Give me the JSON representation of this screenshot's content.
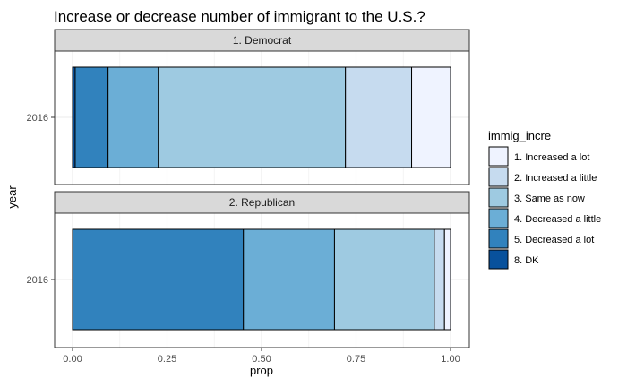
{
  "chart_data": {
    "type": "bar",
    "orientation": "horizontal",
    "stacked": true,
    "title": "Increase or decrease number of immigrant to the U.S.?",
    "xlabel": "prop",
    "ylabel": "year",
    "xlim": [
      0,
      1
    ],
    "x_ticks": [
      "0.00",
      "0.25",
      "0.50",
      "0.75",
      "1.00"
    ],
    "grid": true,
    "legend": {
      "title": "immig_incre",
      "position": "right"
    },
    "panels": [
      {
        "label": "1. Democrat",
        "category": "2016",
        "series": [
          {
            "name": "8. DK",
            "value": 0.007
          },
          {
            "name": "5. Decreased a lot",
            "value": 0.087
          },
          {
            "name": "4. Decreased a little",
            "value": 0.133
          },
          {
            "name": "3. Same as now",
            "value": 0.495
          },
          {
            "name": "2. Increased a little",
            "value": 0.175
          },
          {
            "name": "1. Increased a lot",
            "value": 0.103
          }
        ]
      },
      {
        "label": "2. Republican",
        "category": "2016",
        "series": [
          {
            "name": "8. DK",
            "value": 0.0
          },
          {
            "name": "5. Decreased a lot",
            "value": 0.452
          },
          {
            "name": "4. Decreased a little",
            "value": 0.241
          },
          {
            "name": "3. Same as now",
            "value": 0.264
          },
          {
            "name": "2. Increased a little",
            "value": 0.027
          },
          {
            "name": "1. Increased a lot",
            "value": 0.016
          }
        ]
      }
    ],
    "legend_items": [
      {
        "name": "1. Increased a lot",
        "color": "#eff3ff"
      },
      {
        "name": "2. Increased a little",
        "color": "#c6dbef"
      },
      {
        "name": "3. Same as now",
        "color": "#9ecae1"
      },
      {
        "name": "4. Decreased a little",
        "color": "#6baed6"
      },
      {
        "name": "5. Decreased a lot",
        "color": "#3182bd"
      },
      {
        "name": "8. DK",
        "color": "#08519c"
      }
    ]
  }
}
